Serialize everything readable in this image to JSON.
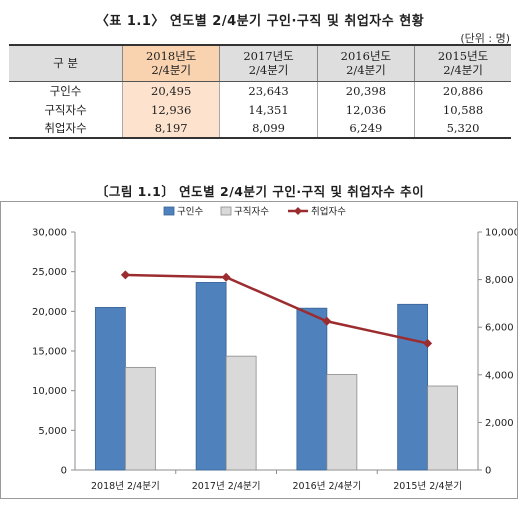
{
  "table": {
    "title": "〈표 1.1〉 연도별 2/4분기 구인·구직 및 취업자수 현황",
    "unit": "(단위 : 명)",
    "corner_label": "구 분",
    "columns": [
      {
        "line1": "2018년도",
        "line2": "2/4분기"
      },
      {
        "line1": "2017년도",
        "line2": "2/4분기"
      },
      {
        "line1": "2016년도",
        "line2": "2/4분기"
      },
      {
        "line1": "2015년도",
        "line2": "2/4분기"
      }
    ],
    "rows": [
      {
        "label": "구인수",
        "values": [
          "20,495",
          "23,643",
          "20,398",
          "20,886"
        ]
      },
      {
        "label": "구직자수",
        "values": [
          "12,936",
          "14,351",
          "12,036",
          "10,588"
        ]
      },
      {
        "label": "취업자수",
        "values": [
          "8,197",
          "8,099",
          "6,249",
          "5,320"
        ]
      }
    ]
  },
  "chart_data": {
    "type": "bar",
    "title": "〔그림 1.1〕 연도별 2/4분기 구인·구직 및 취업자수 추이",
    "categories": [
      "2018년 2/4분기",
      "2017년 2/4분기",
      "2016년 2/4분기",
      "2015년 2/4분기"
    ],
    "series": [
      {
        "name": "구인수",
        "type": "bar",
        "axis": "left",
        "color": "#4f81bd",
        "values": [
          20495,
          23643,
          20398,
          20886
        ]
      },
      {
        "name": "구직자수",
        "type": "bar",
        "axis": "left",
        "color": "#d9d9d9",
        "values": [
          12936,
          14351,
          12036,
          10588
        ]
      },
      {
        "name": "취업자수",
        "type": "line",
        "axis": "right",
        "color": "#9b2d30",
        "values": [
          8197,
          8099,
          6249,
          5320
        ]
      }
    ],
    "ylim_left": [
      0,
      30000
    ],
    "yticks_left": [
      "0",
      "5,000",
      "10,000",
      "15,000",
      "20,000",
      "25,000",
      "30,000"
    ],
    "ylim_right": [
      0,
      10000
    ],
    "yticks_right": [
      "0",
      "2,000",
      "4,000",
      "6,000",
      "8,000",
      "10,000"
    ],
    "legend_position": "top",
    "grid": false
  }
}
